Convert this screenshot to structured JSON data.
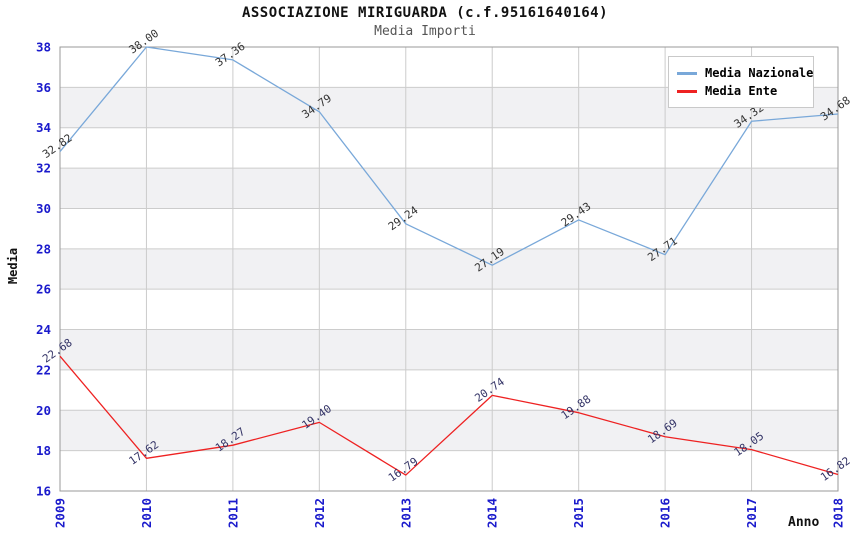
{
  "chart_data": {
    "type": "line",
    "title": "ASSOCIAZIONE MIRIGUARDA (c.f.95161640164)",
    "subtitle": "Media Importi",
    "xlabel": "Anno",
    "ylabel": "Media",
    "categories": [
      "2009",
      "2010",
      "2011",
      "2012",
      "2013",
      "2014",
      "2015",
      "2016",
      "2017",
      "2018"
    ],
    "series": [
      {
        "name": "Media Nazionale",
        "color": "#79a8d9",
        "label_color": "#333333",
        "values": [
          32.82,
          38.0,
          37.36,
          34.79,
          29.24,
          27.19,
          29.43,
          27.71,
          34.32,
          34.68
        ]
      },
      {
        "name": "Media Ente",
        "color": "#ee2222",
        "label_color": "#333366",
        "values": [
          22.68,
          17.62,
          18.27,
          19.4,
          16.79,
          20.74,
          19.88,
          18.69,
          18.05,
          16.82
        ]
      }
    ],
    "ylim": [
      16,
      38
    ],
    "yticks": [
      16,
      18,
      20,
      22,
      24,
      26,
      28,
      30,
      32,
      34,
      36,
      38
    ],
    "grid": true,
    "legend_position": "top-right",
    "colors": {
      "tick_label": "#1a1acc",
      "grid": "#cccccc",
      "band": "#f1f1f3",
      "border": "#999999",
      "subtitle": "#555555"
    }
  }
}
